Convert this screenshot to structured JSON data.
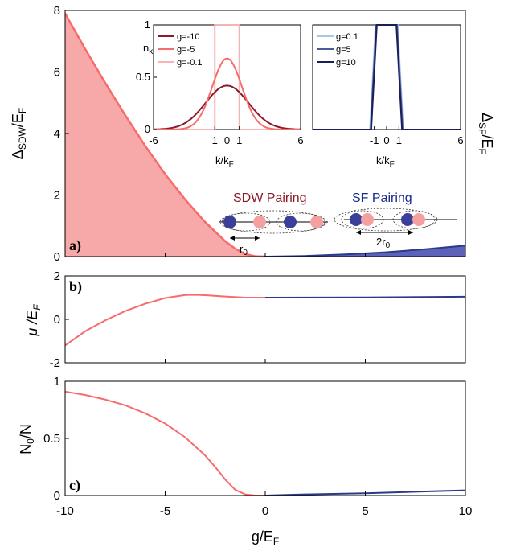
{
  "colors": {
    "sdw": "#f76b6b",
    "sdw_fill": "#f7a9a9",
    "sf": "#2b3a8a",
    "sf_fill": "#5b62b8",
    "sdw_text": "#8b1a2b",
    "sf_text": "#1a2a8a",
    "dark_red": "#8b1a2b",
    "light_red": "#f7b3b3",
    "light_blue": "#a8c8e8",
    "mid_blue": "#4a5a9a",
    "dark_blue": "#1a1f5a",
    "dot_blue": "#3a3f9a",
    "dot_pink": "#f4a0a0"
  },
  "xlabel": "g/E",
  "xlabel_sub": "F",
  "xticks": [
    -10,
    -5,
    0,
    5,
    10
  ],
  "chart_data": [
    {
      "panel": "a)",
      "type": "area",
      "ylabel": "Δ",
      "ylabel_sub": "SDW",
      "ylabel_tail": "/E",
      "ylabel_tail_sub": "F",
      "ylabel_right": "Δ",
      "ylabel_right_sub": "SF",
      "ylabel_right_tail": "/E",
      "ylabel_right_tail_sub": "F",
      "xlim": [
        -10,
        10
      ],
      "ylim": [
        0,
        8
      ],
      "yticks": [
        0,
        2,
        4,
        6,
        8
      ],
      "series": [
        {
          "x": [
            -10,
            -9,
            -8,
            -7,
            -6,
            -5,
            -4,
            -3,
            -2,
            -1.5,
            -1,
            -0.5,
            0
          ],
          "y": [
            7.9,
            6.75,
            5.65,
            4.6,
            3.6,
            2.68,
            1.85,
            1.12,
            0.5,
            0.26,
            0.08,
            0.01,
            0
          ]
        },
        {
          "x": [
            0,
            2,
            4,
            6,
            8,
            10
          ],
          "y": [
            0,
            0.02,
            0.07,
            0.14,
            0.24,
            0.36
          ]
        }
      ],
      "annotations": {
        "sdw_pairing": "SDW Pairing",
        "sf_pairing": "SF Pairing",
        "r0_label": "r",
        "r0_sub": "0",
        "two_r0_label": "2r",
        "two_r0_sub": "0"
      },
      "insets": [
        {
          "type": "line",
          "ylabel": "n",
          "ylabel_sub": "k",
          "xlabel": "k/k",
          "xlabel_sub": "F",
          "xlim": [
            -6,
            6
          ],
          "ylim": [
            0,
            1
          ],
          "xtick_labels": [
            "-6",
            "1",
            "0",
            "1",
            "6"
          ],
          "xtick_values": [
            -6,
            -1,
            0,
            1,
            6
          ],
          "yticks": [
            0,
            0.5,
            1
          ],
          "series": [
            {
              "name": "g=-10",
              "sigma": 1.75,
              "peak": 0.42
            },
            {
              "name": "g=-5",
              "sigma": 1.2,
              "peak": 0.68
            },
            {
              "name": "g=-0.1",
              "width": 1.0,
              "peak": 1.0
            }
          ]
        },
        {
          "type": "line",
          "xlabel": "k/k",
          "xlabel_sub": "F",
          "xlim": [
            -6,
            6
          ],
          "ylim": [
            0,
            1
          ],
          "xtick_labels": [
            "-1",
            "0",
            "1",
            "6"
          ],
          "xtick_values": [
            -1,
            0,
            1,
            6
          ],
          "series": [
            {
              "name": "g=0.1",
              "width": 1.0
            },
            {
              "name": "g=5",
              "width": 0.95
            },
            {
              "name": "g=10",
              "width": 0.9
            }
          ]
        }
      ]
    },
    {
      "panel": "b)",
      "type": "line",
      "ylabel": "μ /E",
      "ylabel_sub": "F",
      "xlim": [
        -10,
        10
      ],
      "ylim": [
        -2,
        2
      ],
      "yticks": [
        -2,
        0,
        2
      ],
      "series": [
        {
          "x": [
            -10,
            -9,
            -8,
            -7,
            -6,
            -5,
            -4,
            -3.5,
            -3,
            -2,
            -1,
            0
          ],
          "y": [
            -1.2,
            -0.55,
            -0.05,
            0.38,
            0.72,
            0.98,
            1.12,
            1.13,
            1.11,
            1.05,
            1.0,
            1.0
          ]
        },
        {
          "x": [
            0,
            5,
            10
          ],
          "y": [
            1.0,
            1.01,
            1.04
          ]
        }
      ]
    },
    {
      "panel": "c)",
      "type": "line",
      "ylabel": "N",
      "ylabel_sub": "0",
      "ylabel_tail": "/N",
      "xlim": [
        -10,
        10
      ],
      "ylim": [
        0,
        1
      ],
      "yticks": [
        0,
        0.5,
        1
      ],
      "series": [
        {
          "x": [
            -10,
            -9,
            -8,
            -7,
            -6,
            -5,
            -4,
            -3,
            -2.5,
            -2,
            -1.5,
            -1,
            -0.5,
            0
          ],
          "y": [
            0.91,
            0.88,
            0.84,
            0.79,
            0.72,
            0.63,
            0.51,
            0.35,
            0.25,
            0.14,
            0.05,
            0.01,
            0.0,
            0.0
          ]
        },
        {
          "x": [
            0,
            2,
            5,
            8,
            10
          ],
          "y": [
            0.0,
            0.01,
            0.02,
            0.035,
            0.045
          ]
        }
      ]
    }
  ]
}
